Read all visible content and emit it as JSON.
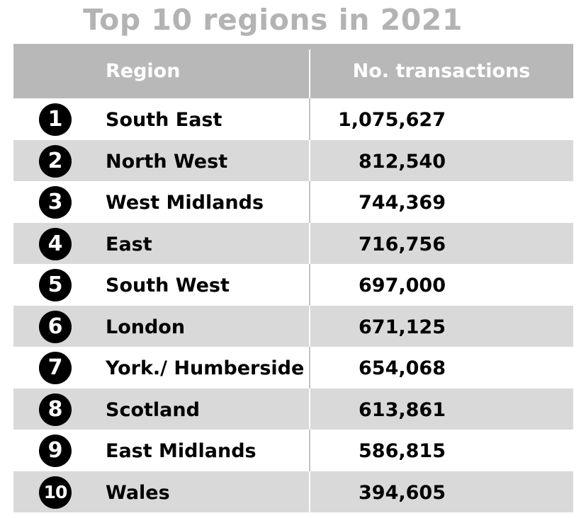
{
  "chart_data": {
    "type": "table",
    "title": "Top 10 regions in 2021",
    "columns": [
      "Region",
      "No. transactions"
    ],
    "rows": [
      {
        "rank": "1",
        "region": "South East",
        "transactions": "1,075,627"
      },
      {
        "rank": "2",
        "region": "North West",
        "transactions": "812,540"
      },
      {
        "rank": "3",
        "region": "West Midlands",
        "transactions": "744,369"
      },
      {
        "rank": "4",
        "region": "East",
        "transactions": "716,756"
      },
      {
        "rank": "5",
        "region": "South West",
        "transactions": "697,000"
      },
      {
        "rank": "6",
        "region": "London",
        "transactions": "671,125"
      },
      {
        "rank": "7",
        "region": "York./ Humberside",
        "transactions": "654,068"
      },
      {
        "rank": "8",
        "region": "Scotland",
        "transactions": "613,861"
      },
      {
        "rank": "9",
        "region": "East Midlands",
        "transactions": "586,815"
      },
      {
        "rank": "10",
        "region": "Wales",
        "transactions": "394,605"
      }
    ]
  },
  "colors": {
    "title": "#b3b3b3",
    "header_bg": "#b8b8b8",
    "alt_row_bg": "#d9d9d9",
    "rank_badge": "#000000"
  }
}
